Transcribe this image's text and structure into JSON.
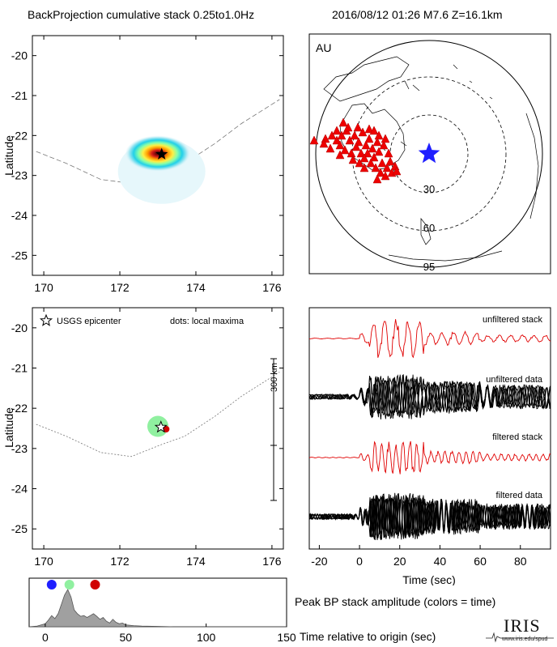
{
  "header": {
    "title": "BackProjection cumulative stack 0.25to1.0Hz",
    "event": "2016/08/12 01:26  M7.6  Z=16.1km"
  },
  "chart_data": [
    {
      "id": "bp_map",
      "type": "heatmap",
      "title": "",
      "xlabel": "",
      "ylabel": "Latitude",
      "xlim": [
        169.7,
        176.3
      ],
      "ylim": [
        -25.5,
        -19.5
      ],
      "xticks": [
        "170",
        "172",
        "174",
        "176"
      ],
      "yticks": [
        "-20",
        "-21",
        "-22",
        "-23",
        "-24",
        "-25"
      ],
      "epicenter": {
        "lon": 173.1,
        "lat": -22.47
      },
      "peak": {
        "lon": 173.0,
        "lat": -22.45
      }
    },
    {
      "id": "station_map",
      "type": "scatter",
      "label": "AU",
      "ring_labels": [
        "30",
        "60",
        "95"
      ],
      "stations_marker": "red triangle",
      "epicenter_marker": "blue star"
    },
    {
      "id": "maxima_map",
      "type": "scatter",
      "title": "",
      "xlabel": "",
      "ylabel": "Latitude",
      "xlim": [
        169.7,
        176.3
      ],
      "ylim": [
        -25.5,
        -19.5
      ],
      "xticks": [
        "170",
        "172",
        "174",
        "176"
      ],
      "yticks": [
        "-20",
        "-21",
        "-22",
        "-23",
        "-24",
        "-25"
      ],
      "legend_epicenter": "USGS epicenter",
      "legend_maxima": "dots: local maxima",
      "scale_bar": "300 km",
      "maxima": [
        {
          "lon": 173.0,
          "lat": -22.45,
          "color": "#90f0a0"
        },
        {
          "lon": 173.22,
          "lat": -22.52,
          "color": "#d00000"
        }
      ]
    },
    {
      "id": "seismograms",
      "type": "line",
      "xlabel": "Time (sec)",
      "xlim": [
        -25,
        95
      ],
      "xticks": [
        "-20",
        "0",
        "20",
        "40",
        "60",
        "80"
      ],
      "labels": [
        "unfiltered stack",
        "unfiltered data",
        "filtered stack",
        "filtered data"
      ]
    },
    {
      "id": "peak_amplitude",
      "type": "area",
      "xlabel": "Time relative to origin (sec)",
      "xlim": [
        -10,
        150
      ],
      "xticks": [
        "0",
        "50",
        "100",
        "150"
      ],
      "caption": "Peak BP stack amplitude (colors = time)",
      "x": [
        -10,
        -5,
        0,
        2,
        4,
        6,
        8,
        10,
        12,
        14,
        16,
        18,
        20,
        22,
        24,
        26,
        28,
        30,
        32,
        34,
        36,
        38,
        40,
        42,
        44,
        46,
        48,
        50,
        55,
        60,
        70,
        80,
        90,
        100,
        150
      ],
      "values": [
        0.0,
        0.02,
        0.08,
        0.18,
        0.3,
        0.22,
        0.35,
        0.6,
        0.85,
        1.0,
        0.8,
        0.45,
        0.35,
        0.28,
        0.3,
        0.25,
        0.3,
        0.35,
        0.28,
        0.2,
        0.25,
        0.15,
        0.1,
        0.2,
        0.12,
        0.08,
        0.1,
        0.05,
        0.03,
        0.02,
        0.01,
        0.0,
        0.0,
        0.0,
        0.0
      ],
      "markers": [
        {
          "time": 4,
          "color": "#1f1fff"
        },
        {
          "time": 15,
          "color": "#90f0a0"
        },
        {
          "time": 31,
          "color": "#d00000"
        }
      ]
    }
  ],
  "logo": {
    "text": "IRIS",
    "url": "www.iris.edu/spud"
  }
}
